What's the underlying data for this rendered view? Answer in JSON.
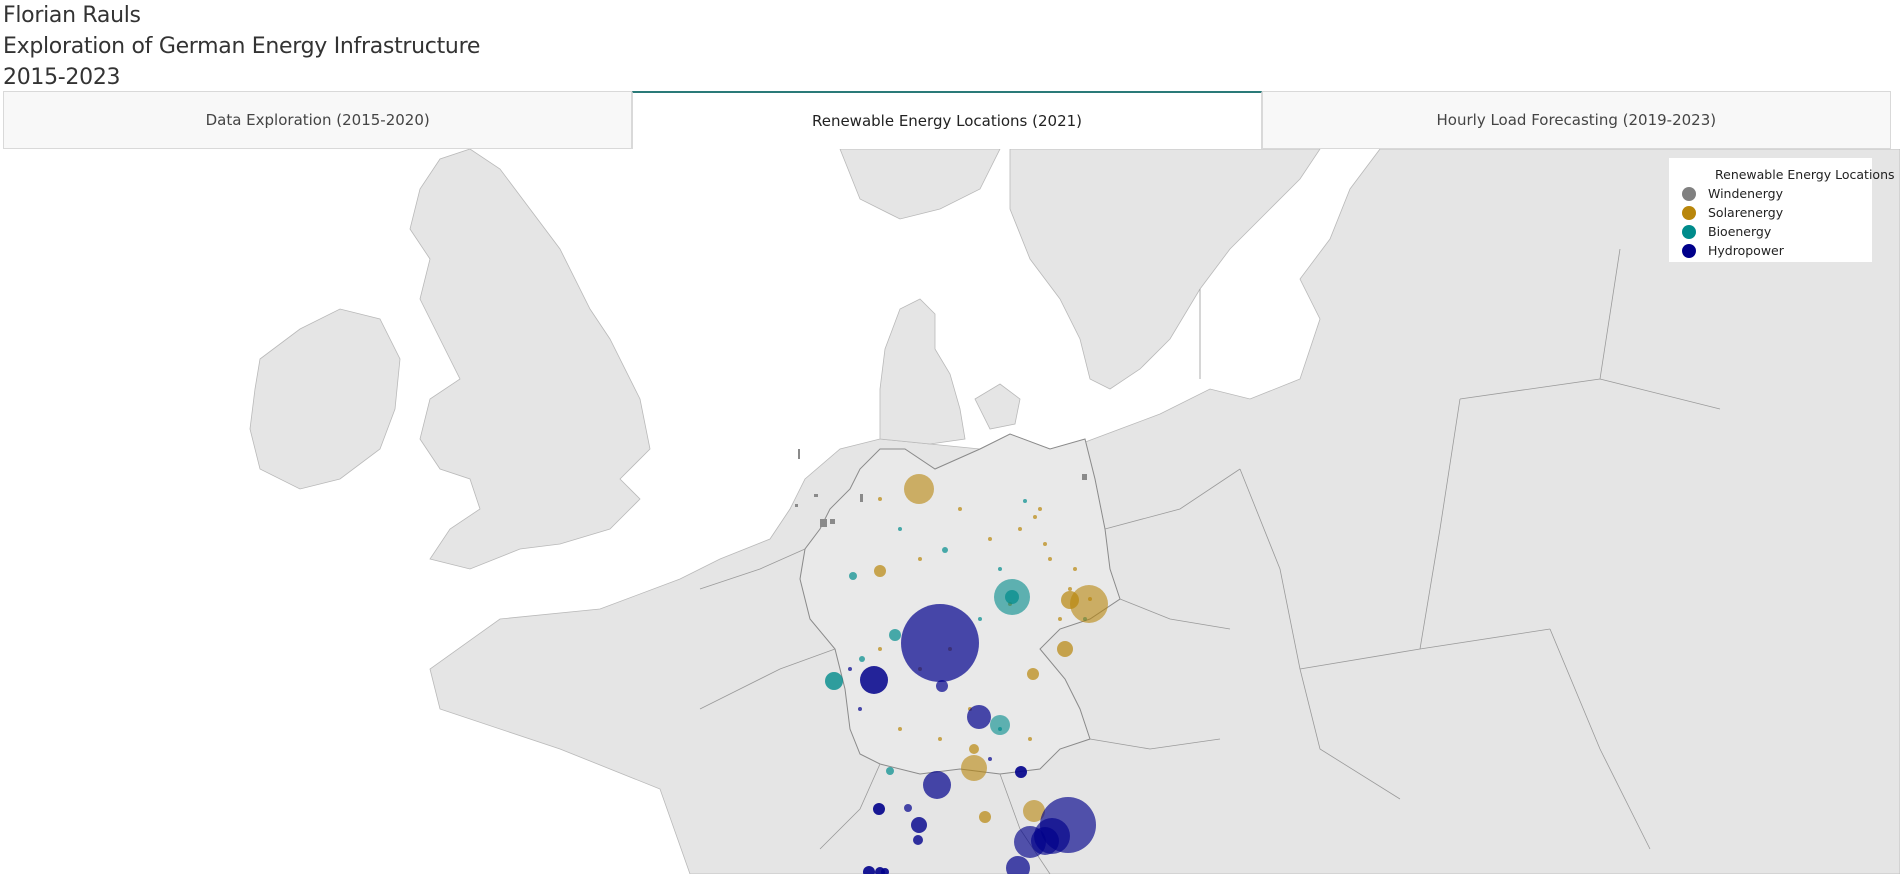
{
  "header": {
    "author": "Florian Rauls",
    "title": "Exploration of German Energy Infrastructure",
    "years": "2015-2023"
  },
  "tabs": [
    {
      "label": "Data Exploration (2015-2020)",
      "active": false
    },
    {
      "label": "Renewable Energy Locations (2021)",
      "active": true
    },
    {
      "label": "Hourly Load Forecasting (2019-2023)",
      "active": false
    }
  ],
  "legend": {
    "title": "Renewable Energy Locations",
    "items": [
      {
        "label": "Windenergy",
        "color": "#808080"
      },
      {
        "label": "Solarenergy",
        "color": "#b8860b"
      },
      {
        "label": "Bioenergy",
        "color": "#008b8b"
      },
      {
        "label": "Hydropower",
        "color": "#00008b"
      }
    ]
  },
  "map_colors": {
    "land": "#e5e5e5",
    "germany": "#e9e9e9",
    "border": "#9a9a9a",
    "water": "#ffffff"
  }
}
